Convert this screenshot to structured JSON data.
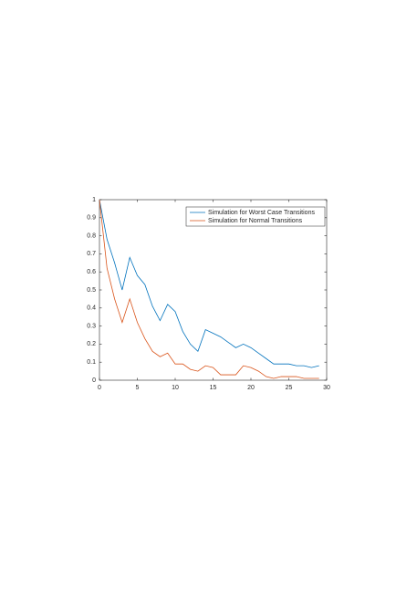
{
  "chart_data": {
    "type": "line",
    "x": [
      0,
      1,
      2,
      3,
      4,
      5,
      6,
      7,
      8,
      9,
      10,
      11,
      12,
      13,
      14,
      15,
      16,
      17,
      18,
      19,
      20,
      21,
      22,
      23,
      24,
      25,
      26,
      27,
      28,
      29
    ],
    "series": [
      {
        "name": "Simulation for Worst Case Transitions",
        "color": "#0072bd",
        "values": [
          1.0,
          0.78,
          0.65,
          0.5,
          0.68,
          0.58,
          0.53,
          0.41,
          0.33,
          0.42,
          0.38,
          0.27,
          0.2,
          0.16,
          0.28,
          0.26,
          0.24,
          0.21,
          0.18,
          0.2,
          0.18,
          0.15,
          0.12,
          0.09,
          0.09,
          0.09,
          0.08,
          0.08,
          0.07,
          0.08
        ]
      },
      {
        "name": "Simulation for Normal Transitions",
        "color": "#d95319",
        "values": [
          1.0,
          0.62,
          0.45,
          0.32,
          0.45,
          0.32,
          0.23,
          0.16,
          0.13,
          0.15,
          0.09,
          0.09,
          0.06,
          0.05,
          0.08,
          0.07,
          0.03,
          0.03,
          0.03,
          0.08,
          0.07,
          0.05,
          0.02,
          0.01,
          0.02,
          0.02,
          0.02,
          0.01,
          0.01,
          0.01
        ]
      }
    ],
    "xlim": [
      0,
      30
    ],
    "xticks": [
      0,
      5,
      10,
      15,
      20,
      25,
      30
    ],
    "ylim": [
      0,
      1
    ],
    "yticks": [
      0,
      0.1,
      0.2,
      0.3,
      0.4,
      0.5,
      0.6,
      0.7,
      0.8,
      0.9,
      1
    ],
    "grid": false,
    "legend": "northeast"
  }
}
